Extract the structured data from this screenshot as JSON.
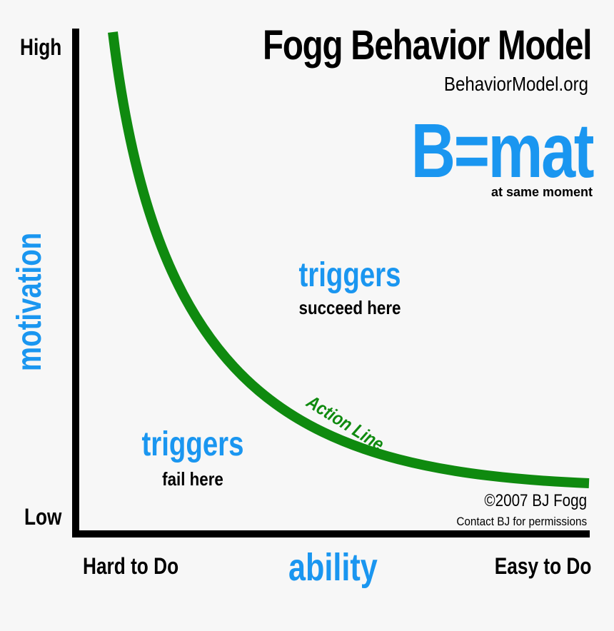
{
  "title": "Fogg Behavior Model",
  "website": "BehaviorModel.org",
  "formula": "B=mat",
  "formula_note": "at same moment",
  "y_axis": {
    "label": "motivation",
    "high": "High",
    "low": "Low"
  },
  "x_axis": {
    "label": "ability",
    "left": "Hard to Do",
    "right": "Easy to Do"
  },
  "regions": {
    "above": {
      "label": "triggers",
      "sub": "succeed here"
    },
    "below": {
      "label": "triggers",
      "sub": "fail here"
    }
  },
  "curve_label": "Action Line",
  "copyright": "©2007 BJ Fogg",
  "contact": "Contact BJ for permissions",
  "colors": {
    "accent": "#1a96f0",
    "curve": "#0f8a0f",
    "axis": "#000000",
    "background": "#f7f7f7"
  }
}
